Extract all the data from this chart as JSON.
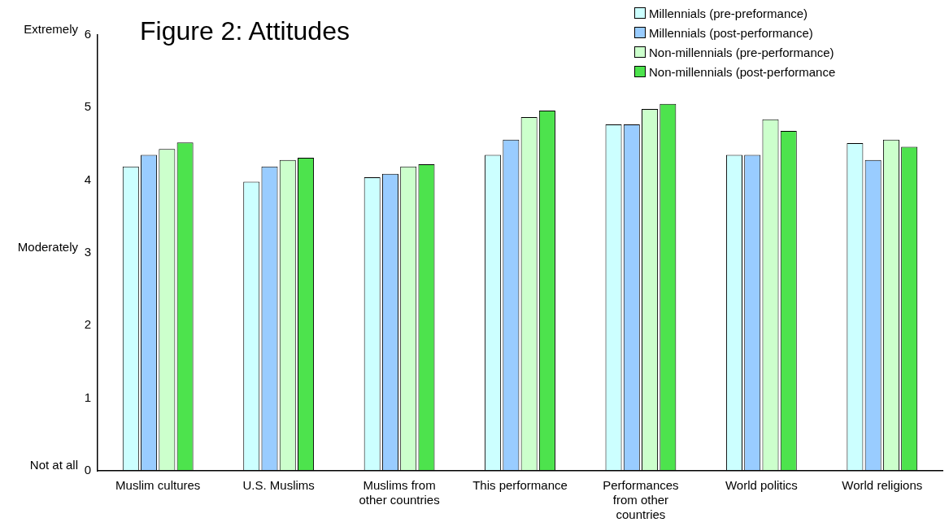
{
  "chart_data": {
    "type": "bar",
    "title": "Figure 2: Attitudes",
    "categories": [
      "Muslim cultures",
      "U.S. Muslims",
      "Muslims from other countries",
      "This performance",
      "Performances from other countries",
      "World politics",
      "World religions"
    ],
    "series": [
      {
        "name": "Millennials (pre-preformance)",
        "color": "#ccffff",
        "values": [
          4.19,
          3.98,
          4.04,
          4.35,
          4.77,
          4.35,
          4.51
        ]
      },
      {
        "name": "Millennials (post-performance)",
        "color": "#99ccff",
        "values": [
          4.35,
          4.19,
          4.09,
          4.56,
          4.77,
          4.35,
          4.28
        ]
      },
      {
        "name": "Non-millennials (pre-performance)",
        "color": "#ccffcc",
        "values": [
          4.43,
          4.28,
          4.19,
          4.87,
          4.98,
          4.84,
          4.56
        ]
      },
      {
        "name": "Non-millennials (post-performance",
        "color": "#4de34d",
        "values": [
          4.52,
          4.31,
          4.22,
          4.96,
          5.05,
          4.68,
          4.46
        ]
      }
    ],
    "ylim": [
      0,
      6
    ],
    "yticks": [
      0,
      1,
      2,
      3,
      4,
      5,
      6
    ],
    "grid": false,
    "legend": "top right",
    "annotations": [
      "Extremely",
      "Moderately",
      "Not at all"
    ]
  }
}
